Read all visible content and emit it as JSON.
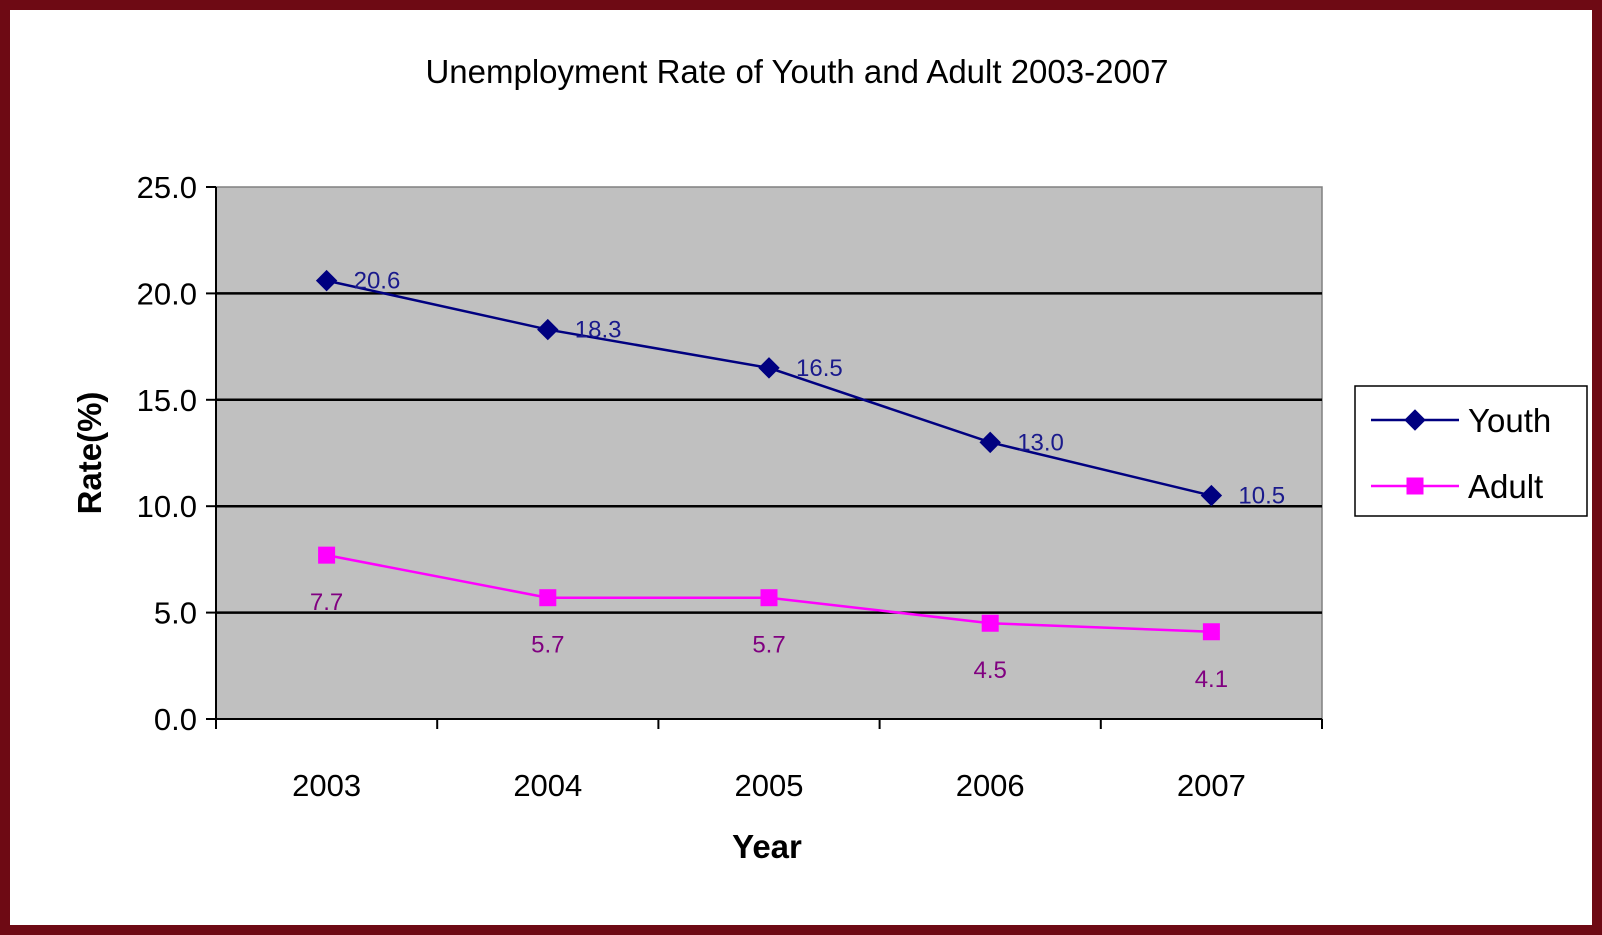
{
  "chart_data": {
    "type": "line",
    "title": "Unemployment Rate of Youth and Adult 2003-2007",
    "xlabel": "Year",
    "ylabel": "Rate(%)",
    "categories": [
      "2003",
      "2004",
      "2005",
      "2006",
      "2007"
    ],
    "ylim": [
      0,
      25
    ],
    "yticks": [
      "0.0",
      "5.0",
      "10.0",
      "15.0",
      "20.0",
      "25.0"
    ],
    "grid": true,
    "legend": "right",
    "series": [
      {
        "name": "Youth",
        "values": [
          20.6,
          18.3,
          16.5,
          13.0,
          10.5
        ],
        "labels": [
          "20.6",
          "18.3",
          "16.5",
          "13.0",
          "10.5"
        ],
        "color": "#000080",
        "label_color": "#1a1a8c",
        "marker": "diamond"
      },
      {
        "name": "Adult",
        "values": [
          7.7,
          5.7,
          5.7,
          4.5,
          4.1
        ],
        "labels": [
          "7.7",
          "5.7",
          "5.7",
          "4.5",
          "4.1"
        ],
        "color": "#ff00ff",
        "label_color": "#800080",
        "marker": "square"
      }
    ],
    "plot_background": "#c0c0c0",
    "frame_color": "#6e0a14"
  }
}
